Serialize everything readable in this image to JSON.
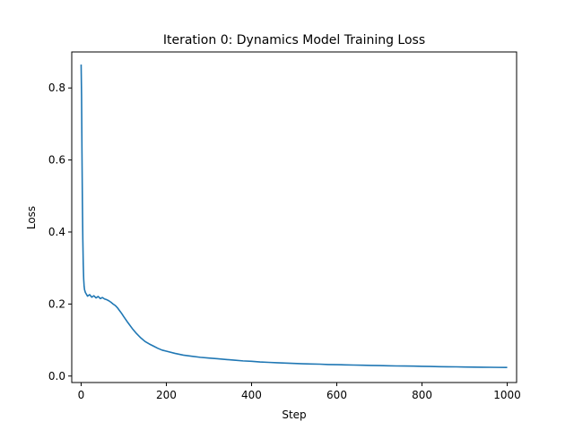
{
  "chart_data": {
    "type": "line",
    "title": "Iteration 0: Dynamics Model Training Loss",
    "xlabel": "Step",
    "ylabel": "Loss",
    "xlim": [
      -22,
      1022
    ],
    "ylim": [
      -0.018,
      0.9
    ],
    "xticks": [
      0,
      200,
      400,
      600,
      800,
      1000
    ],
    "xtick_labels": [
      "0",
      "200",
      "400",
      "600",
      "800",
      "1000"
    ],
    "yticks": [
      0.0,
      0.2,
      0.4,
      0.6,
      0.8
    ],
    "ytick_labels": [
      "0.0",
      "0.2",
      "0.4",
      "0.6",
      "0.8"
    ],
    "grid": false,
    "legend": "none",
    "series": [
      {
        "color": "#1f77b4",
        "x": [
          0,
          1,
          2,
          3,
          4,
          5,
          6,
          7,
          8,
          10,
          12,
          15,
          20,
          25,
          30,
          35,
          40,
          45,
          50,
          55,
          60,
          65,
          70,
          75,
          80,
          85,
          90,
          95,
          100,
          110,
          120,
          130,
          140,
          150,
          160,
          170,
          180,
          190,
          200,
          220,
          240,
          260,
          280,
          300,
          320,
          340,
          360,
          380,
          400,
          420,
          440,
          460,
          480,
          500,
          520,
          540,
          560,
          580,
          600,
          620,
          640,
          660,
          680,
          700,
          720,
          740,
          760,
          780,
          800,
          820,
          840,
          860,
          880,
          900,
          920,
          940,
          960,
          980,
          1000
        ],
        "y": [
          0.865,
          0.78,
          0.62,
          0.48,
          0.38,
          0.31,
          0.27,
          0.25,
          0.24,
          0.232,
          0.228,
          0.222,
          0.226,
          0.219,
          0.223,
          0.217,
          0.221,
          0.215,
          0.218,
          0.214,
          0.212,
          0.209,
          0.205,
          0.2,
          0.196,
          0.19,
          0.182,
          0.174,
          0.165,
          0.148,
          0.132,
          0.118,
          0.106,
          0.096,
          0.089,
          0.083,
          0.077,
          0.072,
          0.069,
          0.063,
          0.058,
          0.055,
          0.052,
          0.05,
          0.048,
          0.046,
          0.044,
          0.042,
          0.041,
          0.039,
          0.038,
          0.037,
          0.036,
          0.035,
          0.034,
          0.0335,
          0.033,
          0.032,
          0.0315,
          0.031,
          0.0305,
          0.03,
          0.0295,
          0.029,
          0.0285,
          0.028,
          0.0278,
          0.0275,
          0.027,
          0.0265,
          0.026,
          0.0258,
          0.0255,
          0.025,
          0.0248,
          0.0245,
          0.0243,
          0.024,
          0.0238
        ]
      }
    ]
  }
}
